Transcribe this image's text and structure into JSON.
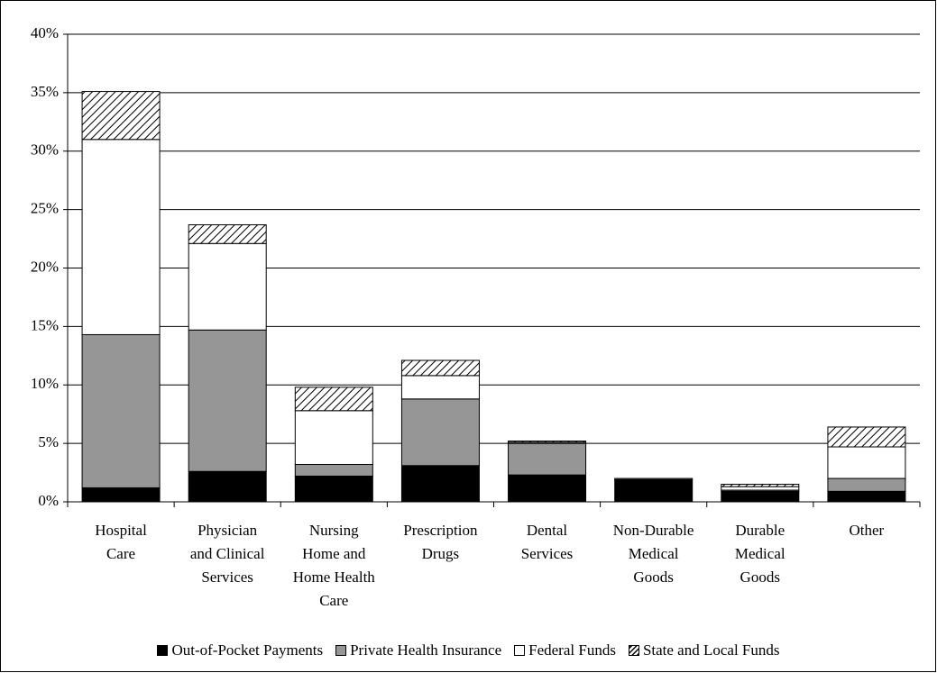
{
  "chart_data": {
    "type": "bar",
    "stacked": true,
    "categories": [
      "Hospital\nCare",
      "Physician\nand Clinical\nServices",
      "Nursing\nHome and\nHome Health\nCare",
      "Prescription\nDrugs",
      "Dental\nServices",
      "Non-Durable\nMedical\nGoods",
      "Durable\nMedical\nGoods",
      "Other"
    ],
    "series": [
      {
        "name": "Out-of-Pocket Payments",
        "color": "#000000",
        "values": [
          1.2,
          2.6,
          2.2,
          3.1,
          2.3,
          1.9,
          0.9,
          0.9
        ]
      },
      {
        "name": "Private Health Insurance",
        "color": "#969696",
        "values": [
          13.1,
          12.1,
          1.0,
          5.7,
          2.7,
          0.1,
          0.1,
          1.1
        ]
      },
      {
        "name": "Federal Funds",
        "color": "#ffffff",
        "values": [
          16.7,
          7.4,
          4.6,
          2.0,
          0.1,
          0.0,
          0.3,
          2.7
        ]
      },
      {
        "name": "State and Local Funds",
        "color": "#ffffff",
        "hatch": true,
        "values": [
          4.1,
          1.6,
          2.0,
          1.3,
          0.1,
          0.0,
          0.2,
          1.7
        ]
      }
    ],
    "ylim": [
      0,
      40
    ],
    "yticks": [
      {
        "value": 0,
        "label": "0%"
      },
      {
        "value": 5,
        "label": "5%"
      },
      {
        "value": 10,
        "label": "10%"
      },
      {
        "value": 15,
        "label": "15%"
      },
      {
        "value": 20,
        "label": "20%"
      },
      {
        "value": 25,
        "label": "25%"
      },
      {
        "value": 30,
        "label": "30%"
      },
      {
        "value": 35,
        "label": "35%"
      },
      {
        "value": 40,
        "label": "40%"
      }
    ],
    "grid": true,
    "legend": "bottom"
  }
}
